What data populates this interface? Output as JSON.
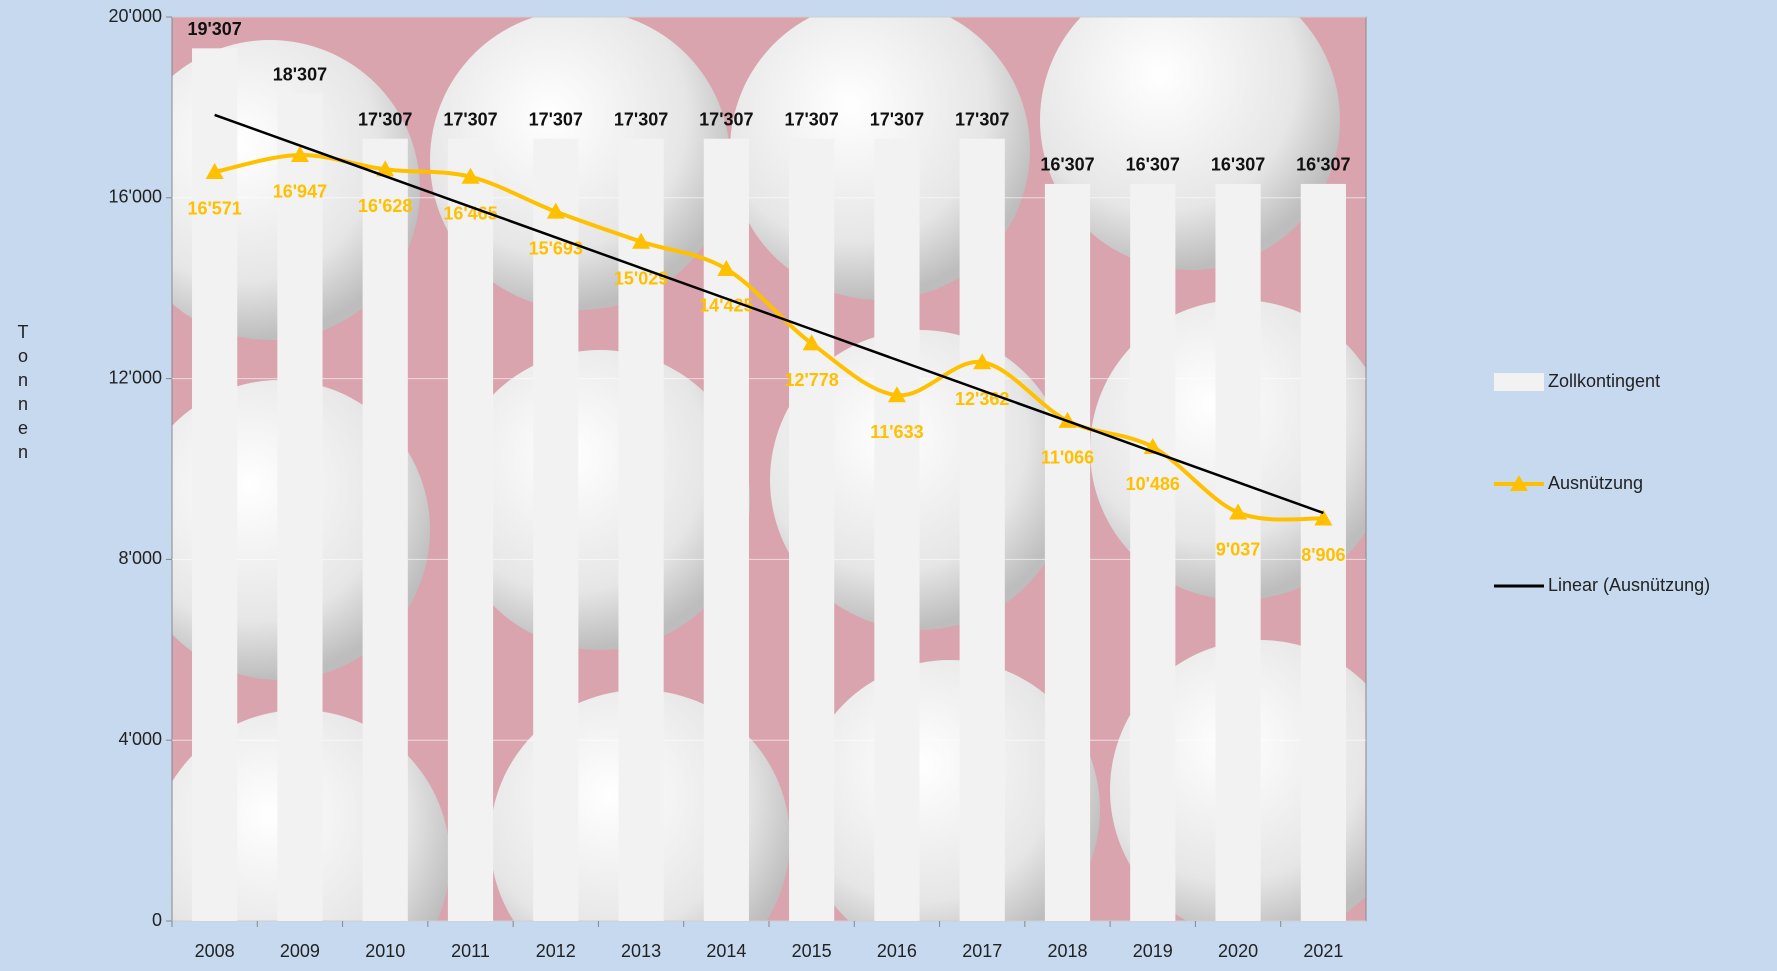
{
  "chart_data": {
    "type": "bar_line",
    "y_label": "Tonnen",
    "categories": [
      "2008",
      "2009",
      "2010",
      "2011",
      "2012",
      "2013",
      "2014",
      "2015",
      "2016",
      "2017",
      "2018",
      "2019",
      "2020",
      "2021"
    ],
    "series": [
      {
        "name": "Zollkontingent",
        "type": "bar",
        "color": "#f2f2f2",
        "values": [
          19307,
          18307,
          17307,
          17307,
          17307,
          17307,
          17307,
          17307,
          17307,
          17307,
          16307,
          16307,
          16307,
          16307
        ],
        "value_labels": [
          "19'307",
          "18'307",
          "17'307",
          "17'307",
          "17'307",
          "17'307",
          "17'307",
          "17'307",
          "17'307",
          "17'307",
          "16'307",
          "16'307",
          "16'307",
          "16'307"
        ]
      },
      {
        "name": "Ausnützung",
        "type": "line",
        "color": "#ffc000",
        "values": [
          16571,
          16947,
          16628,
          16465,
          15693,
          15029,
          14425,
          12778,
          11633,
          12362,
          11066,
          10486,
          9037,
          8906
        ],
        "value_labels": [
          "16'571",
          "16'947",
          "16'628",
          "16'465",
          "15'693",
          "15'029",
          "14'425",
          "12'778",
          "11'633",
          "12'362",
          "11'066",
          "10'486",
          "9'037",
          "8'906"
        ]
      }
    ],
    "trendline": {
      "name": "Linear (Ausnützung)",
      "color": "#000000"
    },
    "ylim": [
      0,
      20000
    ],
    "yticks": [
      0,
      {
        "value": 4000,
        "label": "4'000"
      },
      {
        "value": 8000,
        "label": "8'000"
      },
      {
        "value": 12000,
        "label": "12'000"
      },
      {
        "value": 16000,
        "label": "16'000"
      },
      {
        "value": 20000,
        "label": "20'000"
      }
    ],
    "grid": true
  }
}
